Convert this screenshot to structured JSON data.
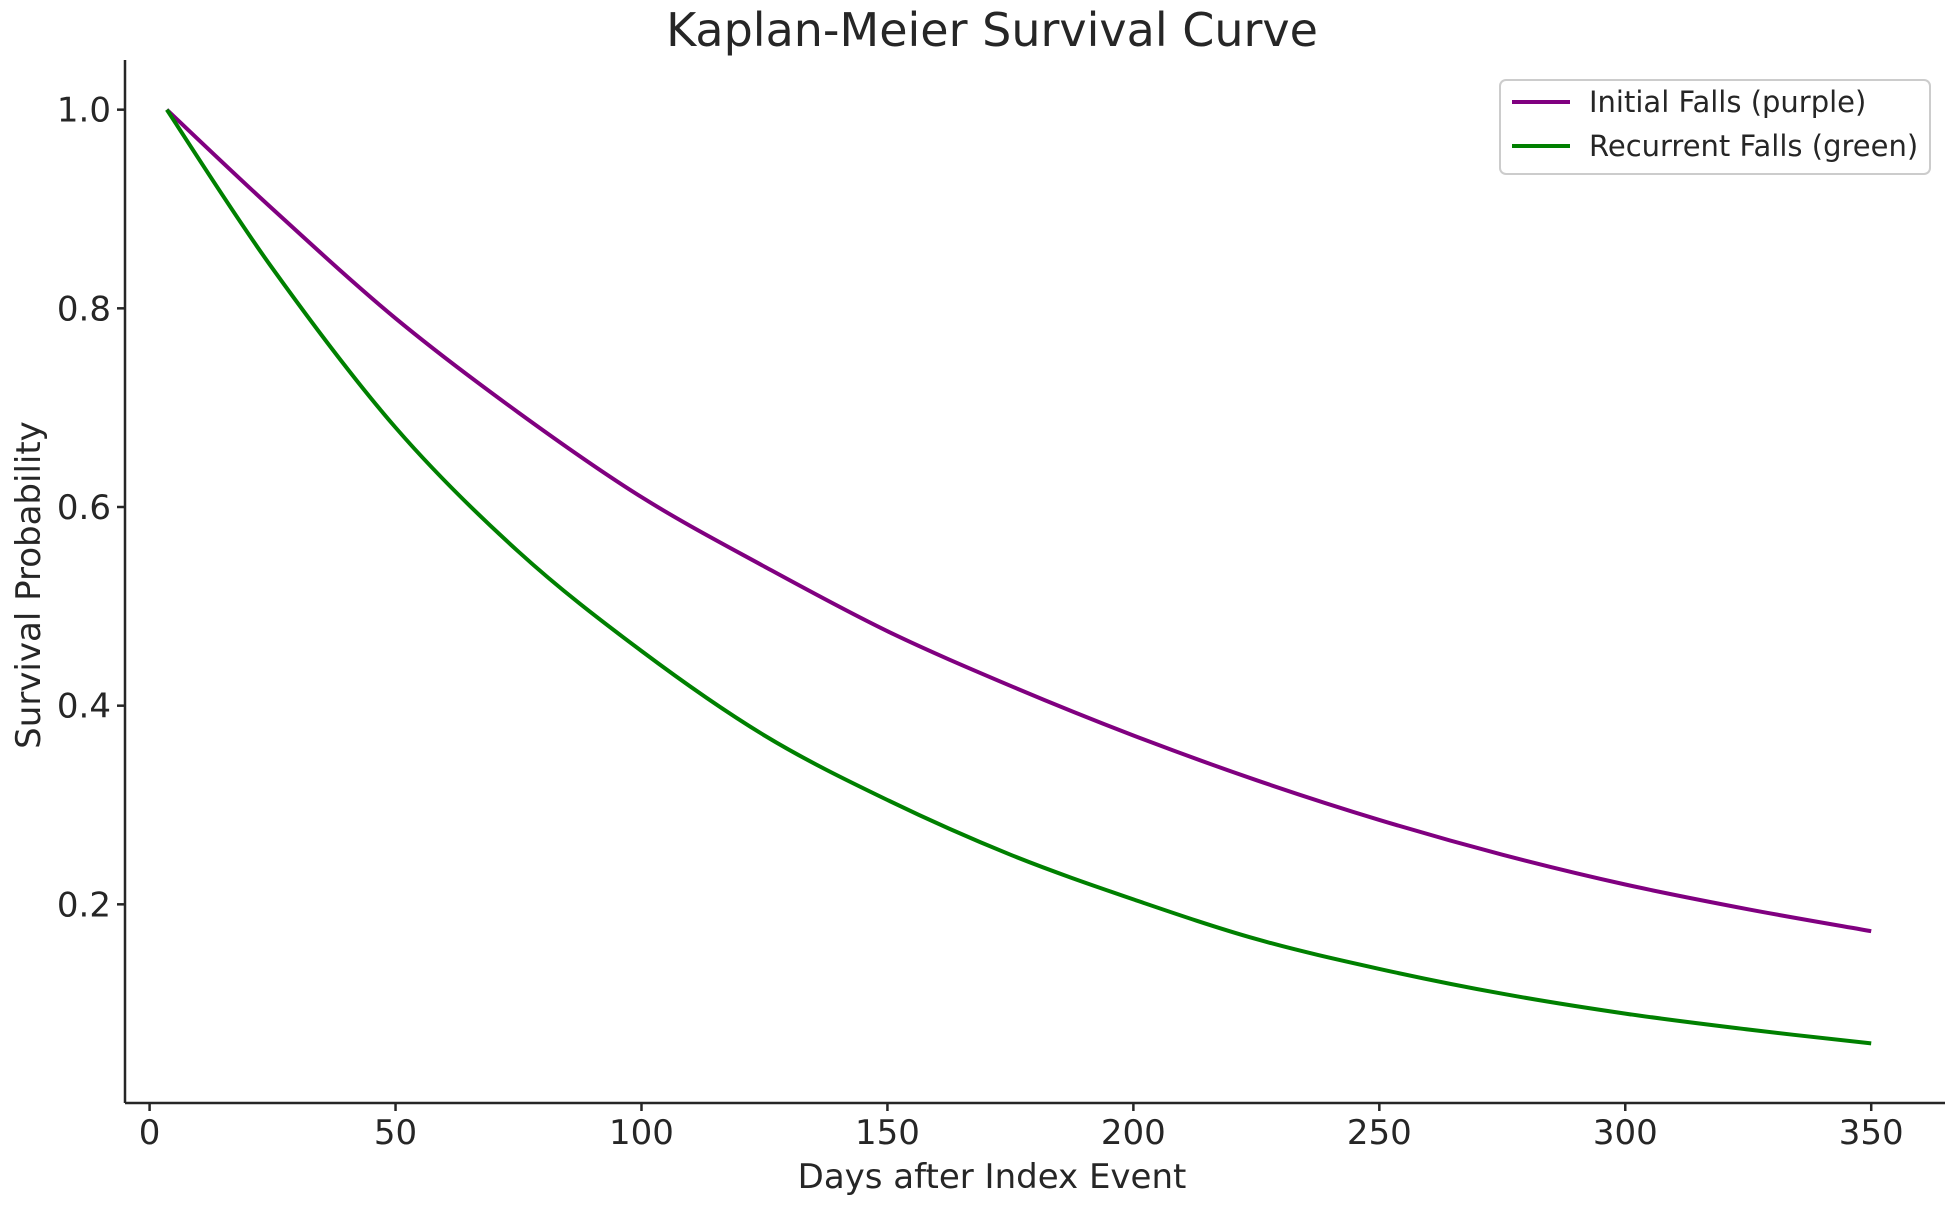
{
  "chart_data": {
    "type": "line",
    "title": "Kaplan-Meier Survival Curve",
    "xlabel": "Days after Index Event",
    "ylabel": "Survival Probability",
    "xlim": [
      -5,
      365
    ],
    "ylim": [
      0.0,
      1.05
    ],
    "xticks": [
      0,
      50,
      100,
      150,
      200,
      250,
      300,
      350
    ],
    "yticks": [
      0.2,
      0.4,
      0.6,
      0.8,
      1.0
    ],
    "xtick_labels": [
      "0",
      "50",
      "100",
      "150",
      "200",
      "250",
      "300",
      "350"
    ],
    "ytick_labels": [
      "0.2",
      "0.4",
      "0.6",
      "0.8",
      "1.0"
    ],
    "grid": false,
    "legend_position": "top-right",
    "series": [
      {
        "name": "Initial Falls (purple)",
        "color": "#800080",
        "x": [
          3.5,
          25,
          50,
          75,
          100,
          125,
          150,
          175,
          200,
          225,
          250,
          275,
          300,
          325,
          350
        ],
        "y": [
          1.0,
          0.9,
          0.79,
          0.695,
          0.61,
          0.54,
          0.475,
          0.42,
          0.37,
          0.325,
          0.285,
          0.25,
          0.22,
          0.195,
          0.173
        ]
      },
      {
        "name": "Recurrent Falls (green)",
        "color": "#008000",
        "x": [
          3.5,
          25,
          50,
          75,
          100,
          125,
          150,
          175,
          200,
          225,
          250,
          275,
          300,
          325,
          350
        ],
        "y": [
          1.0,
          0.84,
          0.68,
          0.555,
          0.455,
          0.37,
          0.305,
          0.25,
          0.205,
          0.165,
          0.135,
          0.11,
          0.09,
          0.074,
          0.06
        ]
      }
    ]
  }
}
